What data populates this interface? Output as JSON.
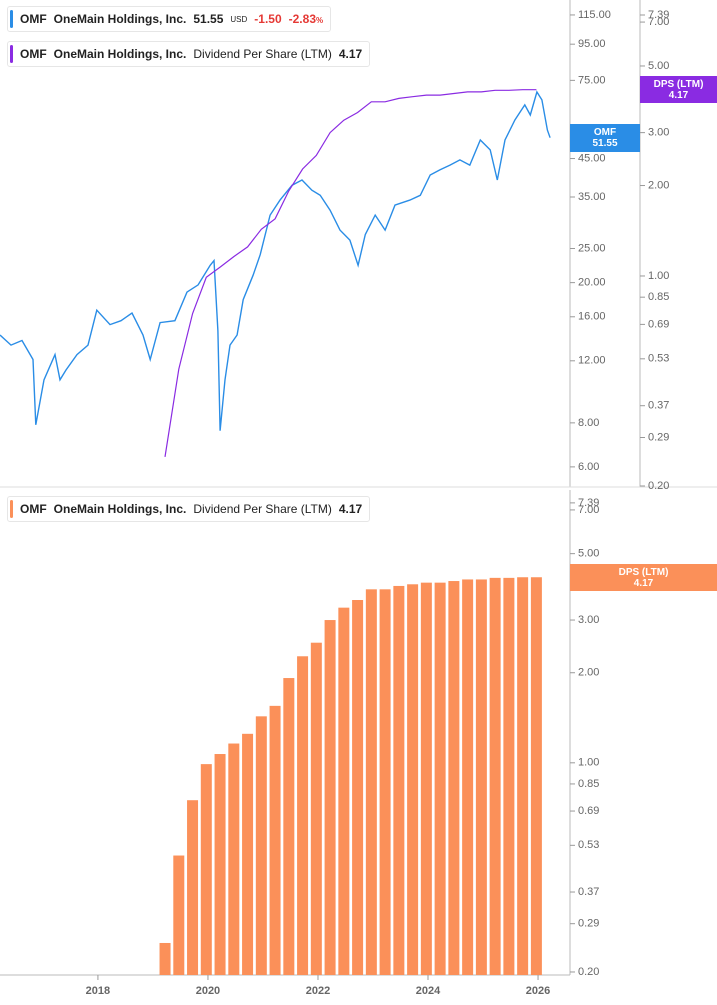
{
  "chart_data": [
    {
      "type": "line",
      "ticker": "OMF",
      "currency": "USD",
      "change": "-1.50",
      "change_pct": "-2.83",
      "pct_sign": "%",
      "dps_tag": "DPS (LTM)",
      "log_scale": true,
      "xlim": [
        2016.22,
        2026.49
      ],
      "ylim": [
        5.33,
        126.8
      ],
      "yticks": [
        {
          "value": 115,
          "label": "115.00"
        },
        {
          "value": 95,
          "label": "95.00"
        },
        {
          "value": 75,
          "label": "75.00"
        },
        {
          "value": 45,
          "label": "45.00"
        },
        {
          "value": 35,
          "label": "35.00"
        },
        {
          "value": 25,
          "label": "25.00"
        },
        {
          "value": 20,
          "label": "20.00"
        },
        {
          "value": 16,
          "label": "16.00"
        },
        {
          "value": 12,
          "label": "12.00"
        },
        {
          "value": 8,
          "label": "8.00"
        },
        {
          "value": 6,
          "label": "6.00"
        }
      ],
      "y2lim": [
        0.2015,
        8.29
      ],
      "y2ticks": [
        7.39,
        {
          "value": 7,
          "label": "7.00"
        },
        {
          "value": 5,
          "label": "5.00"
        },
        {
          "value": 3,
          "label": "3.00"
        },
        {
          "value": 2,
          "label": "2.00"
        },
        {
          "value": 1,
          "label": "1.00"
        },
        0.85,
        0.69,
        0.53,
        0.37,
        0.29,
        {
          "value": 0.2,
          "label": "0.20"
        }
      ],
      "series": [
        {
          "name": "OneMain Holdings, Inc.",
          "color": "#2a8de6",
          "x": [
            2016.22,
            2016.42,
            2016.62,
            2016.82,
            2016.87,
            2017.02,
            2017.22,
            2017.31,
            2017.42,
            2017.62,
            2017.82,
            2017.98,
            2018.22,
            2018.42,
            2018.62,
            2018.82,
            2018.95,
            2019.13,
            2019.4,
            2019.62,
            2019.82,
            2020.04,
            2020.11,
            2020.18,
            2020.22,
            2020.31,
            2020.4,
            2020.53,
            2020.64,
            2020.82,
            2020.95,
            2021.13,
            2021.31,
            2021.53,
            2021.71,
            2021.89,
            2022.04,
            2022.22,
            2022.4,
            2022.58,
            2022.73,
            2022.86,
            2023.04,
            2023.22,
            2023.4,
            2023.67,
            2023.86,
            2024.04,
            2024.22,
            2024.4,
            2024.58,
            2024.76,
            2024.95,
            2025.13,
            2025.26,
            2025.4,
            2025.58,
            2025.76,
            2025.86,
            2025.98,
            2026.07,
            2026.17,
            2026.22
          ],
          "values": [
            14.2,
            13.3,
            13.7,
            12.1,
            7.9,
            10.6,
            12.5,
            10.6,
            11.3,
            12.5,
            13.3,
            16.7,
            15.2,
            15.6,
            16.4,
            14.2,
            12.1,
            15.4,
            15.6,
            18.8,
            19.7,
            22.4,
            23.1,
            14.6,
            7.6,
            10.6,
            13.3,
            14.2,
            17.9,
            21.0,
            24.0,
            31.1,
            34.3,
            37.8,
            39.1,
            36.6,
            35.4,
            32.1,
            28.2,
            26.4,
            22.4,
            27.4,
            31.1,
            28.2,
            33.2,
            34.3,
            35.4,
            40.4,
            41.8,
            43.1,
            44.6,
            43.1,
            50.8,
            47.6,
            39.1,
            50.8,
            57.9,
            63.9,
            59.8,
            69.5,
            66.0,
            54.2,
            51.55
          ]
        },
        {
          "name": "Dividend Per Share (LTM)",
          "color": "#8a2be2",
          "axis": "y2",
          "x": [
            2019.22,
            2019.47,
            2019.72,
            2019.97,
            2020.22,
            2020.47,
            2020.72,
            2020.97,
            2021.22,
            2021.47,
            2021.72,
            2021.97,
            2022.22,
            2022.47,
            2022.72,
            2022.97,
            2023.22,
            2023.47,
            2023.72,
            2023.97,
            2024.22,
            2024.47,
            2024.72,
            2024.97,
            2025.22,
            2025.47,
            2025.72,
            2025.97
          ],
          "values": [
            0.25,
            0.49,
            0.75,
            0.99,
            1.07,
            1.16,
            1.25,
            1.43,
            1.55,
            1.92,
            2.27,
            2.52,
            3.0,
            3.3,
            3.5,
            3.8,
            3.8,
            3.9,
            3.95,
            4.0,
            4.0,
            4.05,
            4.1,
            4.1,
            4.15,
            4.15,
            4.17,
            4.17
          ]
        }
      ]
    },
    {
      "type": "bar",
      "ticker": "OMF",
      "company": "OneMain Holdings, Inc.",
      "dps_tag": "DPS (LTM)",
      "log_scale": true,
      "xlim": [
        2016.22,
        2026.49
      ],
      "ylim": [
        0.1954,
        8.16
      ],
      "xticks": [
        2018,
        2020,
        2022,
        2024,
        2026
      ],
      "yticks": [
        7.39,
        {
          "value": 7,
          "label": "7.00"
        },
        {
          "value": 5,
          "label": "5.00"
        },
        {
          "value": 3,
          "label": "3.00"
        },
        {
          "value": 2,
          "label": "2.00"
        },
        {
          "value": 1,
          "label": "1.00"
        },
        0.85,
        0.69,
        0.53,
        0.37,
        0.29,
        {
          "value": 0.2,
          "label": "0.20"
        }
      ],
      "series": [
        {
          "name": "Dividend Per Share (LTM)",
          "color": "#fb9059",
          "x": [
            2019.22,
            2019.47,
            2019.72,
            2019.97,
            2020.22,
            2020.47,
            2020.72,
            2020.97,
            2021.22,
            2021.47,
            2021.72,
            2021.97,
            2022.22,
            2022.47,
            2022.72,
            2022.97,
            2023.22,
            2023.47,
            2023.72,
            2023.97,
            2024.22,
            2024.47,
            2024.72,
            2024.97,
            2025.22,
            2025.47,
            2025.72,
            2025.97
          ],
          "values": [
            0.25,
            0.49,
            0.75,
            0.99,
            1.07,
            1.16,
            1.25,
            1.43,
            1.55,
            1.92,
            2.27,
            2.52,
            3.0,
            3.3,
            3.5,
            3.8,
            3.8,
            3.9,
            3.95,
            4.0,
            4.0,
            4.05,
            4.1,
            4.1,
            4.15,
            4.15,
            4.17,
            4.17
          ]
        }
      ]
    }
  ]
}
